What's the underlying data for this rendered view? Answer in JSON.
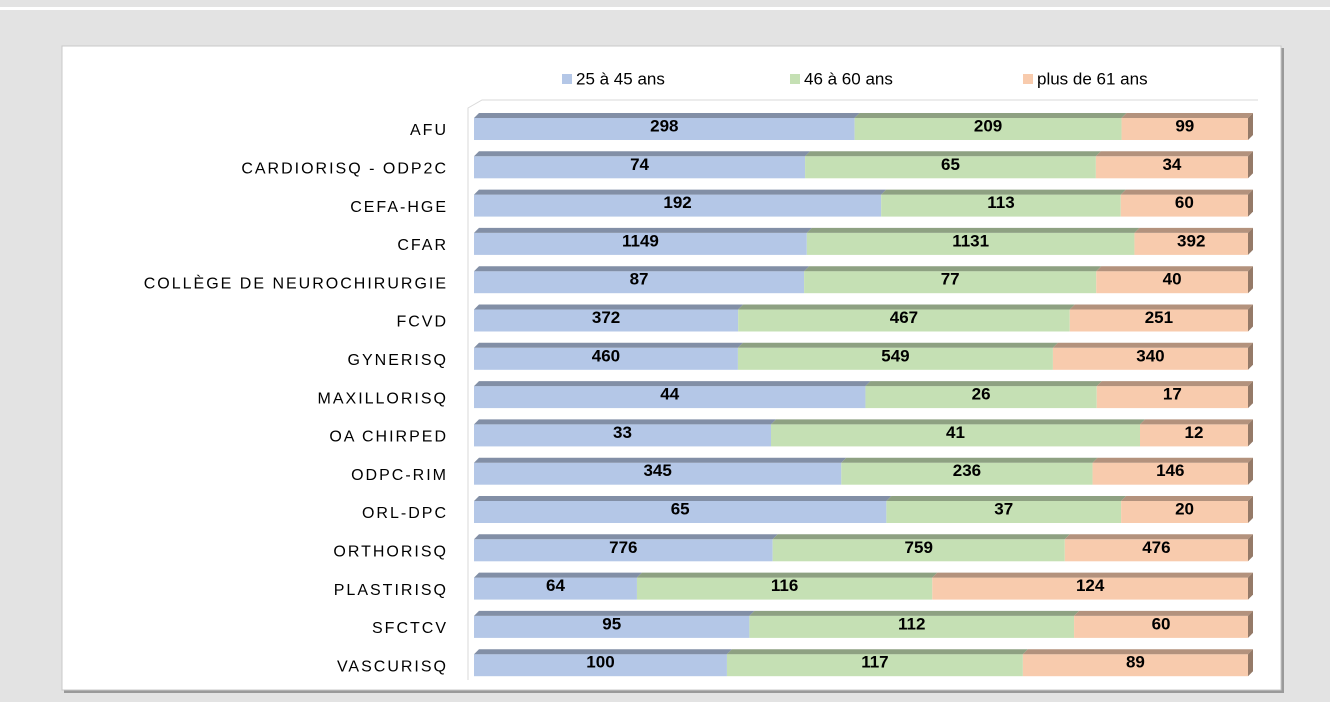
{
  "chart_data": {
    "type": "bar",
    "orientation": "horizontal",
    "stacking": "percent",
    "categories": [
      "AFU",
      "CARDIORISQ - ODP2C",
      "CEFA-HGE",
      "CFAR",
      "COLLÈGE DE NEUROCHIRURGIE",
      "FCVD",
      "GYNERISQ",
      "MAXILLORISQ",
      "OA CHIRPED",
      "ODPC-RIM",
      "ORL-DPC",
      "ORTHORISQ",
      "PLASTIRISQ",
      "SFCTCV",
      "VASCURISQ"
    ],
    "series": [
      {
        "name": "25 à 45 ans",
        "color": "#b4c7e7",
        "values": [
          298,
          74,
          192,
          1149,
          87,
          372,
          460,
          44,
          33,
          345,
          65,
          776,
          64,
          95,
          100
        ]
      },
      {
        "name": "46 à 60 ans",
        "color": "#c5e0b4",
        "values": [
          209,
          65,
          113,
          1131,
          77,
          467,
          549,
          26,
          41,
          236,
          37,
          759,
          116,
          112,
          117
        ]
      },
      {
        "name": "plus de 61 ans",
        "color": "#f8cbad",
        "values": [
          99,
          34,
          60,
          392,
          40,
          251,
          340,
          17,
          12,
          146,
          20,
          476,
          124,
          60,
          89
        ]
      }
    ],
    "legend": "top"
  }
}
